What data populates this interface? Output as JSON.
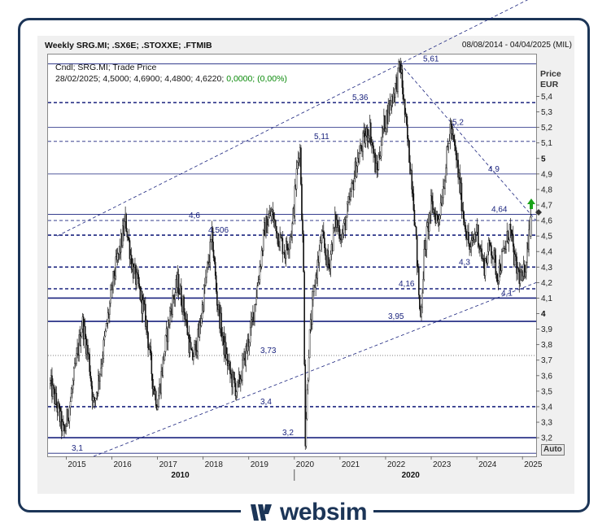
{
  "header": {
    "title": "Weekly SRG.MI; .SX6E; .STOXXE; .FTMIB",
    "date_range": "08/08/2014 - 04/04/2025 (MIL)"
  },
  "info": {
    "line1": "Cndl; SRG.MI; Trade Price",
    "line2_prefix": "28/02/2025; 4,5000; 4,6900; 4,4800; 4,6220; ",
    "line2_change": "0,0000; (0,00%)"
  },
  "axis": {
    "units_line1": "Price",
    "units_line2": "EUR",
    "auto_label": "Auto"
  },
  "logo": {
    "text": "websim"
  },
  "colors": {
    "navy": "#1a237e",
    "candle": "#111111",
    "frame": "#1c3557",
    "up_arrow": "#1aa31a"
  },
  "chart_data": {
    "type": "candlestick",
    "title": "Weekly SRG.MI; .SX6E; .STOXXE; .FTMIB",
    "ylabel": "Price EUR",
    "ylim": [
      3.08,
      5.67
    ],
    "y_ticks": [
      "3,2",
      "3,3",
      "3,4",
      "3,5",
      "3,6",
      "3,7",
      "3,8",
      "3,9",
      "4",
      "4,1",
      "4,2",
      "4,3",
      "4,4",
      "4,5",
      "4,6",
      "4,7",
      "4,8",
      "4,9",
      "5",
      "5,1",
      "5,2",
      "5,3",
      "5,4"
    ],
    "y_ticks_bold": [
      "4",
      "5"
    ],
    "x_tick_labels": [
      "2015",
      "2016",
      "2017",
      "2018",
      "2019",
      "2020",
      "2021",
      "2022",
      "2023",
      "2024",
      "2025"
    ],
    "x_decade_labels": [
      "2010",
      "2020"
    ],
    "last_candle": {
      "date": "28/02/2025",
      "open": 4.5,
      "high": 4.69,
      "low": 4.48,
      "close": 4.622
    },
    "series_points": [
      {
        "x": 2014.65,
        "y": 3.55
      },
      {
        "x": 2014.8,
        "y": 3.4
      },
      {
        "x": 2014.95,
        "y": 3.22
      },
      {
        "x": 2015.1,
        "y": 3.45
      },
      {
        "x": 2015.2,
        "y": 3.65
      },
      {
        "x": 2015.35,
        "y": 3.95
      },
      {
        "x": 2015.5,
        "y": 3.7
      },
      {
        "x": 2015.6,
        "y": 3.4
      },
      {
        "x": 2015.75,
        "y": 3.65
      },
      {
        "x": 2015.9,
        "y": 3.95
      },
      {
        "x": 2016.05,
        "y": 4.25
      },
      {
        "x": 2016.2,
        "y": 4.45
      },
      {
        "x": 2016.3,
        "y": 4.6
      },
      {
        "x": 2016.45,
        "y": 4.3
      },
      {
        "x": 2016.6,
        "y": 4.15
      },
      {
        "x": 2016.75,
        "y": 3.95
      },
      {
        "x": 2016.9,
        "y": 3.55
      },
      {
        "x": 2017.0,
        "y": 3.42
      },
      {
        "x": 2017.15,
        "y": 3.75
      },
      {
        "x": 2017.3,
        "y": 4.05
      },
      {
        "x": 2017.45,
        "y": 4.2
      },
      {
        "x": 2017.6,
        "y": 4.0
      },
      {
        "x": 2017.75,
        "y": 3.7
      },
      {
        "x": 2017.9,
        "y": 3.85
      },
      {
        "x": 2018.05,
        "y": 4.2
      },
      {
        "x": 2018.2,
        "y": 4.5
      },
      {
        "x": 2018.3,
        "y": 4.1
      },
      {
        "x": 2018.45,
        "y": 3.8
      },
      {
        "x": 2018.6,
        "y": 3.6
      },
      {
        "x": 2018.75,
        "y": 3.5
      },
      {
        "x": 2018.9,
        "y": 3.7
      },
      {
        "x": 2019.05,
        "y": 3.9
      },
      {
        "x": 2019.2,
        "y": 4.2
      },
      {
        "x": 2019.35,
        "y": 4.55
      },
      {
        "x": 2019.5,
        "y": 4.65
      },
      {
        "x": 2019.65,
        "y": 4.5
      },
      {
        "x": 2019.8,
        "y": 4.4
      },
      {
        "x": 2019.95,
        "y": 4.55
      },
      {
        "x": 2020.05,
        "y": 4.9
      },
      {
        "x": 2020.12,
        "y": 5.11
      },
      {
        "x": 2020.2,
        "y": 4.3
      },
      {
        "x": 2020.24,
        "y": 3.2
      },
      {
        "x": 2020.32,
        "y": 3.8
      },
      {
        "x": 2020.45,
        "y": 4.2
      },
      {
        "x": 2020.6,
        "y": 4.5
      },
      {
        "x": 2020.75,
        "y": 4.3
      },
      {
        "x": 2020.9,
        "y": 4.6
      },
      {
        "x": 2021.05,
        "y": 4.5
      },
      {
        "x": 2021.2,
        "y": 4.7
      },
      {
        "x": 2021.35,
        "y": 4.95
      },
      {
        "x": 2021.5,
        "y": 5.1
      },
      {
        "x": 2021.65,
        "y": 5.2
      },
      {
        "x": 2021.8,
        "y": 4.9
      },
      {
        "x": 2021.95,
        "y": 5.2
      },
      {
        "x": 2022.1,
        "y": 5.35
      },
      {
        "x": 2022.25,
        "y": 5.5
      },
      {
        "x": 2022.32,
        "y": 5.61
      },
      {
        "x": 2022.45,
        "y": 5.2
      },
      {
        "x": 2022.6,
        "y": 4.8
      },
      {
        "x": 2022.7,
        "y": 4.3
      },
      {
        "x": 2022.76,
        "y": 3.95
      },
      {
        "x": 2022.85,
        "y": 4.4
      },
      {
        "x": 2023.0,
        "y": 4.7
      },
      {
        "x": 2023.15,
        "y": 4.6
      },
      {
        "x": 2023.3,
        "y": 4.9
      },
      {
        "x": 2023.42,
        "y": 5.2
      },
      {
        "x": 2023.55,
        "y": 5.0
      },
      {
        "x": 2023.7,
        "y": 4.65
      },
      {
        "x": 2023.85,
        "y": 4.4
      },
      {
        "x": 2024.0,
        "y": 4.55
      },
      {
        "x": 2024.15,
        "y": 4.3
      },
      {
        "x": 2024.3,
        "y": 4.45
      },
      {
        "x": 2024.45,
        "y": 4.25
      },
      {
        "x": 2024.6,
        "y": 4.4
      },
      {
        "x": 2024.72,
        "y": 4.55
      },
      {
        "x": 2024.85,
        "y": 4.3
      },
      {
        "x": 2025.0,
        "y": 4.2
      },
      {
        "x": 2025.1,
        "y": 4.4
      },
      {
        "x": 2025.16,
        "y": 4.62
      }
    ],
    "horizontal_levels": [
      {
        "value": 5.61,
        "label": "5,61",
        "style": "solid-thin"
      },
      {
        "value": 5.36,
        "label": "5,36",
        "style": "dashed-thick"
      },
      {
        "value": 5.2,
        "label": "5,2",
        "style": "solid-thin"
      },
      {
        "value": 5.11,
        "label": "5,11",
        "style": "dashed-thin"
      },
      {
        "value": 4.9,
        "label": "4,9",
        "style": "solid-thin"
      },
      {
        "value": 4.64,
        "label": "4,64",
        "style": "solid-thin"
      },
      {
        "value": 4.6,
        "label": "4,6",
        "style": "dashed-thin"
      },
      {
        "value": 4.506,
        "label": "4,506",
        "style": "dashed-thick"
      },
      {
        "value": 4.3,
        "label": "4,3",
        "style": "dashed-thick"
      },
      {
        "value": 4.16,
        "label": "4,16",
        "style": "dashed-thick"
      },
      {
        "value": 4.1,
        "label": "4,1",
        "style": "solid-thick"
      },
      {
        "value": 3.95,
        "label": "3,95",
        "style": "solid-thick"
      },
      {
        "value": 3.73,
        "label": "3,73",
        "style": "dotted"
      },
      {
        "value": 3.4,
        "label": "3,4",
        "style": "dashed-thick"
      },
      {
        "value": 3.2,
        "label": "3,2",
        "style": "solid-thick"
      },
      {
        "value": 3.1,
        "label": "3,1",
        "style": "solid-thin"
      }
    ],
    "trendlines": [
      {
        "from": {
          "x": 2015.6,
          "y": 3.08
        },
        "to": {
          "x": 2025.3,
          "y": 4.2
        }
      },
      {
        "from": {
          "x": 2014.8,
          "y": 4.5
        },
        "to": {
          "x": 2025.3,
          "y": 6.05
        }
      },
      {
        "from": {
          "x": 2022.32,
          "y": 5.61
        },
        "to": {
          "x": 2025.3,
          "y": 4.6
        }
      }
    ]
  }
}
